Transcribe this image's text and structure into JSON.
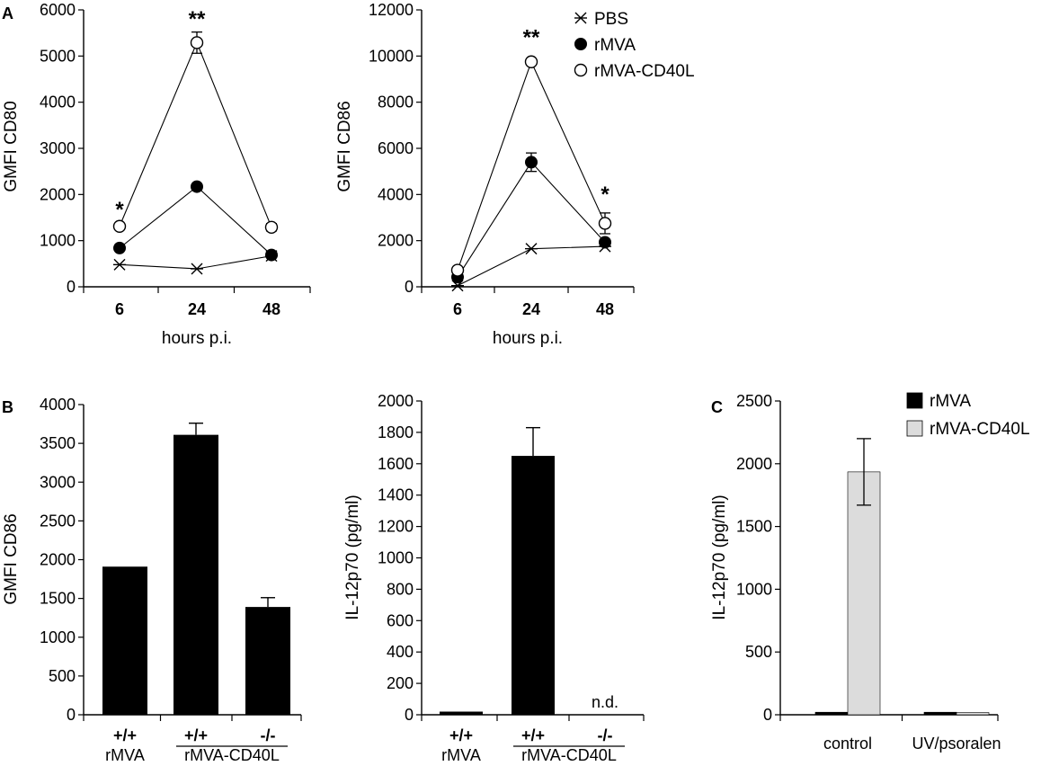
{
  "figure": {
    "panel_labels": {
      "A": "A",
      "B": "B",
      "C": "C"
    }
  },
  "chart_data": [
    {
      "id": "cd80",
      "type": "line",
      "panel": "A",
      "title": "",
      "xlabel": "hours p.i.",
      "ylabel": "GMFI CD80",
      "categories": [
        "6",
        "24",
        "48"
      ],
      "ylim": [
        0,
        6000
      ],
      "yticks": [
        0,
        1000,
        2000,
        3000,
        4000,
        5000,
        6000
      ],
      "series": [
        {
          "name": "PBS",
          "marker": "star",
          "values": [
            480,
            390,
            670
          ],
          "errors": [
            0,
            0,
            0
          ]
        },
        {
          "name": "rMVA",
          "marker": "filled",
          "values": [
            840,
            2170,
            690
          ],
          "errors": [
            0,
            0,
            60
          ]
        },
        {
          "name": "rMVA-CD40L",
          "marker": "open",
          "values": [
            1310,
            5290,
            1290
          ],
          "errors": [
            0,
            230,
            80
          ]
        }
      ],
      "annotations": [
        {
          "category": "6",
          "text": "*",
          "above": 1520
        },
        {
          "category": "24",
          "text": "**",
          "above": 5650
        }
      ]
    },
    {
      "id": "cd86_time",
      "type": "line",
      "panel": "A",
      "title": "",
      "xlabel": "hours p.i.",
      "ylabel": "GMFI CD86",
      "categories": [
        "6",
        "24",
        "48"
      ],
      "ylim": [
        0,
        12000
      ],
      "yticks": [
        0,
        2000,
        4000,
        6000,
        8000,
        10000,
        12000
      ],
      "legend": {
        "position": "top-right",
        "entries": [
          "PBS",
          "rMVA",
          "rMVA-CD40L"
        ]
      },
      "series": [
        {
          "name": "PBS",
          "marker": "star",
          "values": [
            50,
            1650,
            1750
          ],
          "errors": [
            0,
            0,
            0
          ]
        },
        {
          "name": "rMVA",
          "marker": "filled",
          "values": [
            420,
            5400,
            1930
          ],
          "errors": [
            0,
            400,
            0
          ]
        },
        {
          "name": "rMVA-CD40L",
          "marker": "open",
          "values": [
            720,
            9750,
            2750
          ],
          "errors": [
            0,
            0,
            450
          ]
        }
      ],
      "annotations": [
        {
          "category": "24",
          "text": "**",
          "above": 10500
        },
        {
          "category": "48",
          "text": "*",
          "above": 3700
        }
      ]
    },
    {
      "id": "cd86_bar",
      "type": "bar",
      "panel": "B",
      "title": "",
      "xlabel": "",
      "ylabel": "GMFI CD86",
      "categories": [
        "+/+",
        "+/+",
        "-/-"
      ],
      "groups": [
        "rMVA",
        "rMVA-CD40L"
      ],
      "ylim": [
        0,
        4000
      ],
      "yticks": [
        0,
        500,
        1000,
        1500,
        2000,
        2500,
        3000,
        3500,
        4000
      ],
      "values": [
        1910,
        3610,
        1390
      ],
      "errors": [
        0,
        150,
        120
      ],
      "color": "#000000"
    },
    {
      "id": "il12_bar",
      "type": "bar",
      "panel": "B",
      "title": "",
      "xlabel": "",
      "ylabel": "IL-12p70 (pg/ml)",
      "categories": [
        "+/+",
        "+/+",
        "-/-"
      ],
      "groups": [
        "rMVA",
        "rMVA-CD40L"
      ],
      "ylim": [
        0,
        2000
      ],
      "yticks": [
        0,
        200,
        400,
        600,
        800,
        1000,
        1200,
        1400,
        1600,
        1800,
        2000
      ],
      "values": [
        20,
        1650,
        0
      ],
      "errors": [
        0,
        180,
        0
      ],
      "color": "#000000",
      "annotations": [
        {
          "category_index": 2,
          "text": "n.d."
        }
      ]
    },
    {
      "id": "il12_uv",
      "type": "bar",
      "panel": "C",
      "title": "",
      "xlabel": "",
      "ylabel": "IL-12p70 (pg/ml)",
      "categories": [
        "control",
        "UV/psoralen"
      ],
      "ylim": [
        0,
        2500
      ],
      "yticks": [
        0,
        500,
        1000,
        1500,
        2000,
        2500
      ],
      "legend": {
        "position": "top-right",
        "entries": [
          "rMVA",
          "rMVA-CD40L"
        ]
      },
      "series": [
        {
          "name": "rMVA",
          "color": "#000000",
          "values": [
            20,
            20
          ],
          "errors": [
            0,
            0
          ]
        },
        {
          "name": "rMVA-CD40L",
          "color": "#dcdcdc",
          "values": [
            1935,
            18
          ],
          "errors": [
            265,
            0
          ]
        }
      ]
    }
  ]
}
